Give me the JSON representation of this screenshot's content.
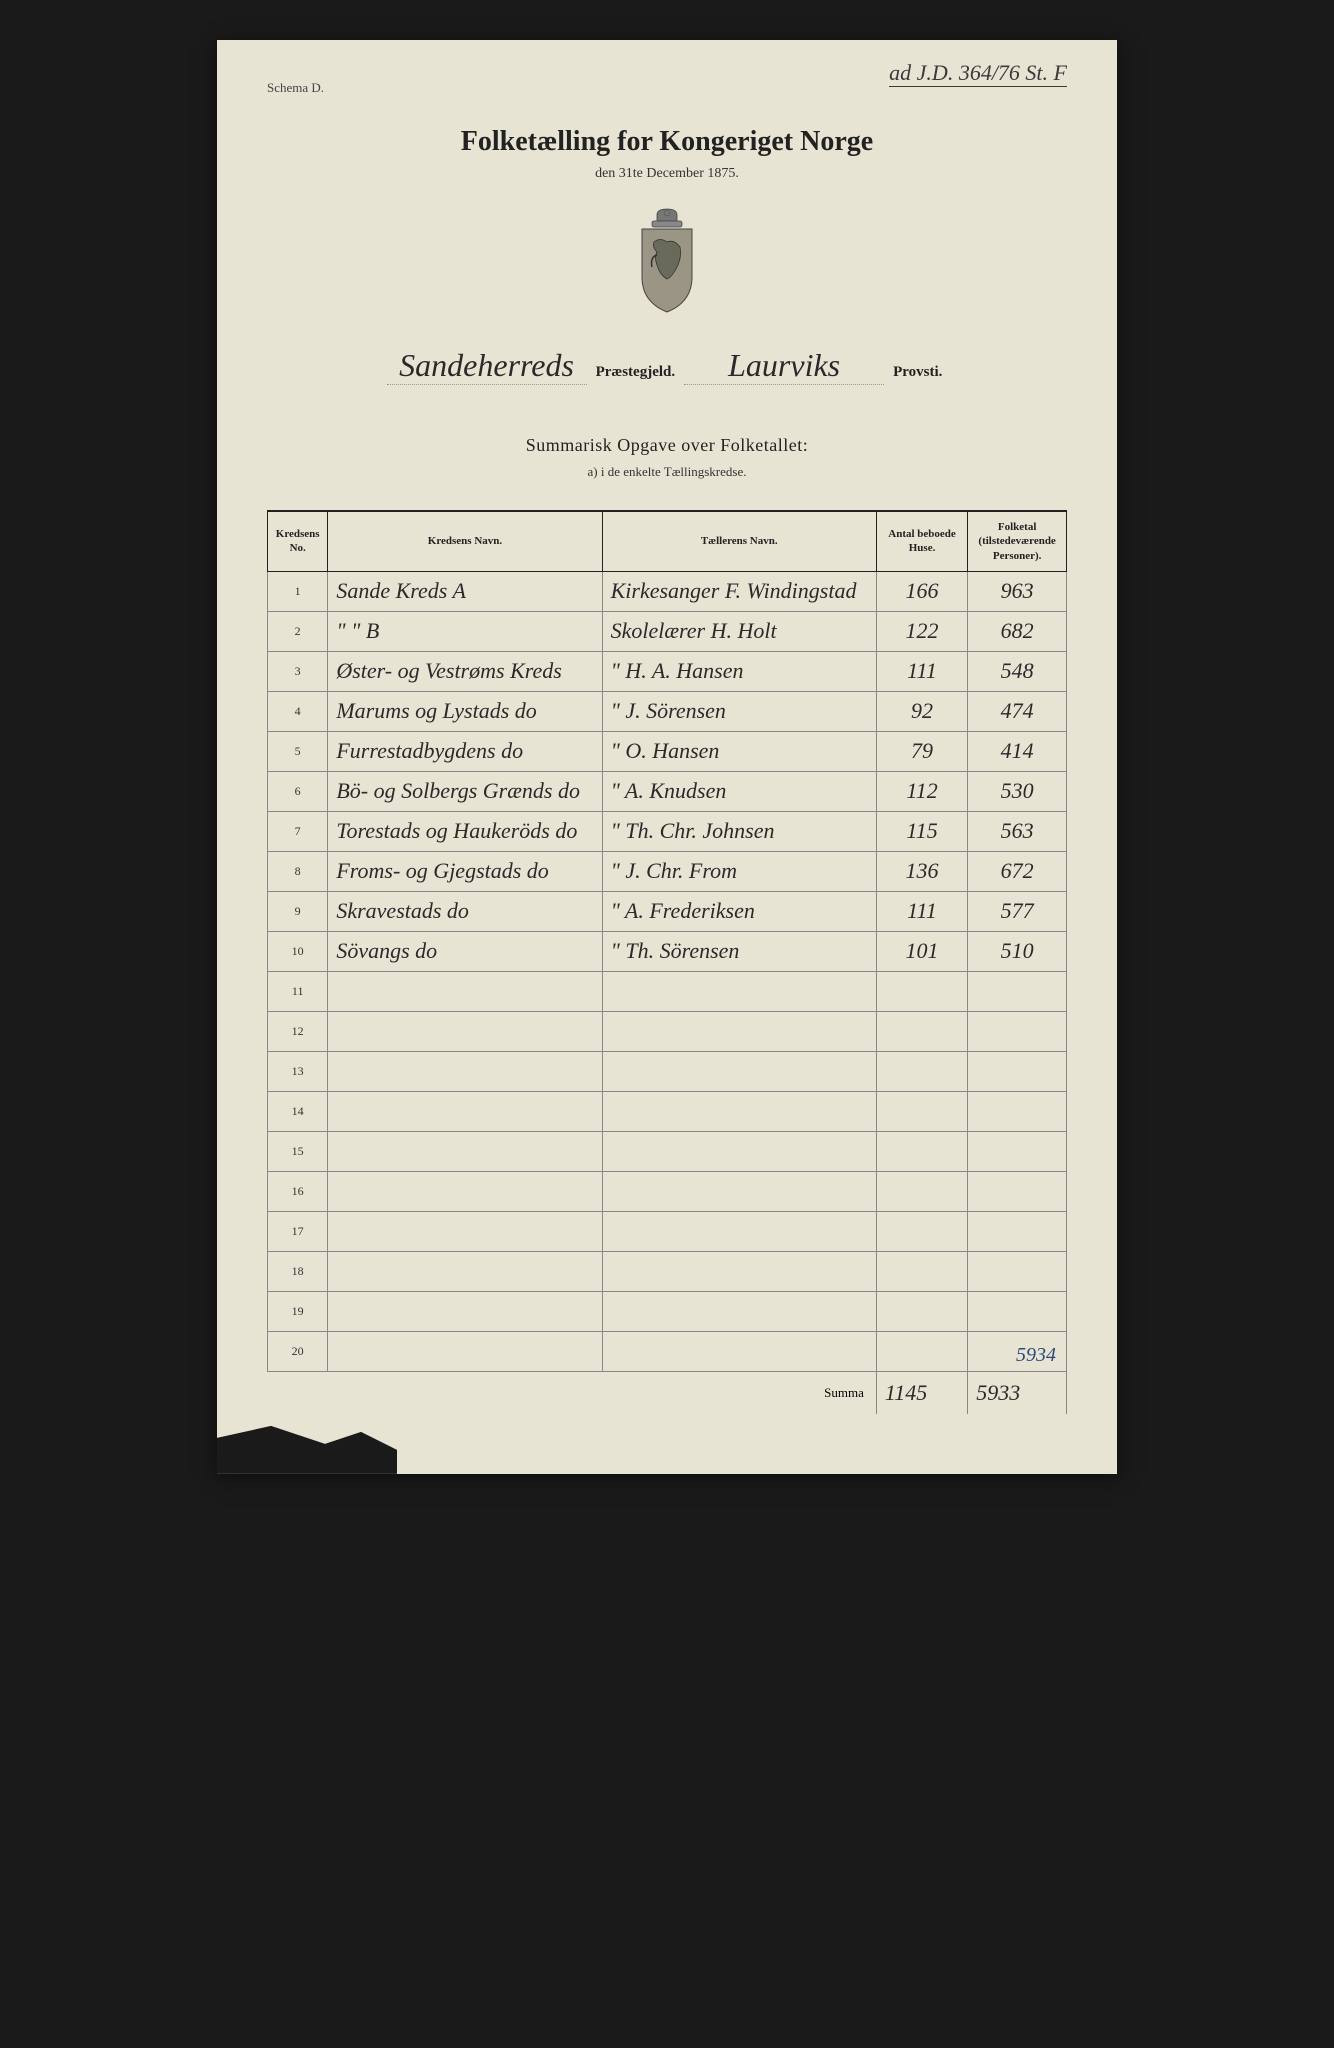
{
  "annotation": "ad J.D. 364/76 St. F",
  "schema": "Schema D.",
  "title": "Folketælling for Kongeriget Norge",
  "subtitle": "den 31te December 1875.",
  "parish": {
    "praestegjeld": "Sandeherreds",
    "praestegjeld_label": "Præstegjeld.",
    "provsti": "Laurviks",
    "provsti_label": "Provsti."
  },
  "summary": {
    "title": "Summarisk Opgave over Folketallet:",
    "sub": "a) i de enkelte Tællingskredse."
  },
  "columns": {
    "no": "Kredsens No.",
    "name": "Kredsens Navn.",
    "teller": "Tællerens Navn.",
    "houses": "Antal beboede Huse.",
    "pop": "Folketal (tilstedeværende Personer)."
  },
  "rows": [
    {
      "no": "1",
      "name": "Sande Kreds A",
      "teller": "Kirkesanger F. Windingstad",
      "houses": "166",
      "pop": "963"
    },
    {
      "no": "2",
      "name": "\"          \"      B",
      "teller": "Skolelærer H. Holt",
      "houses": "122",
      "pop": "682"
    },
    {
      "no": "3",
      "name": "Øster- og Vestrøms Kreds",
      "teller": "\"     H. A. Hansen",
      "houses": "111",
      "pop": "548"
    },
    {
      "no": "4",
      "name": "Marums og Lystads  do",
      "teller": "\"     J. Sörensen",
      "houses": "92",
      "pop": "474"
    },
    {
      "no": "5",
      "name": "Furrestadbygdens  do",
      "teller": "\"     O. Hansen",
      "houses": "79",
      "pop": "414"
    },
    {
      "no": "6",
      "name": "Bö- og Solbergs Grænds do",
      "teller": "\"     A. Knudsen",
      "houses": "112",
      "pop": "530"
    },
    {
      "no": "7",
      "name": "Torestads og Haukeröds do",
      "teller": "\"     Th. Chr. Johnsen",
      "houses": "115",
      "pop": "563"
    },
    {
      "no": "8",
      "name": "Froms- og Gjegstads  do",
      "teller": "\"     J. Chr. From",
      "houses": "136",
      "pop": "672"
    },
    {
      "no": "9",
      "name": "Skravestads       do",
      "teller": "\"     A. Frederiksen",
      "houses": "111",
      "pop": "577"
    },
    {
      "no": "10",
      "name": "Sövangs           do",
      "teller": "\"     Th. Sörensen",
      "houses": "101",
      "pop": "510"
    },
    {
      "no": "11",
      "name": "",
      "teller": "",
      "houses": "",
      "pop": ""
    },
    {
      "no": "12",
      "name": "",
      "teller": "",
      "houses": "",
      "pop": ""
    },
    {
      "no": "13",
      "name": "",
      "teller": "",
      "houses": "",
      "pop": ""
    },
    {
      "no": "14",
      "name": "",
      "teller": "",
      "houses": "",
      "pop": ""
    },
    {
      "no": "15",
      "name": "",
      "teller": "",
      "houses": "",
      "pop": ""
    },
    {
      "no": "16",
      "name": "",
      "teller": "",
      "houses": "",
      "pop": ""
    },
    {
      "no": "17",
      "name": "",
      "teller": "",
      "houses": "",
      "pop": ""
    },
    {
      "no": "18",
      "name": "",
      "teller": "",
      "houses": "",
      "pop": ""
    },
    {
      "no": "19",
      "name": "",
      "teller": "",
      "houses": "",
      "pop": ""
    },
    {
      "no": "20",
      "name": "",
      "teller": "",
      "houses": "",
      "pop": ""
    }
  ],
  "corrected_total": "5934",
  "summa": {
    "label": "Summa",
    "houses": "1145",
    "pop": "5933"
  },
  "colors": {
    "paper": "#e8e4d4",
    "ink": "#2a2a2a",
    "blue_ink": "#2a4a7a",
    "background": "#1a1a1a"
  }
}
